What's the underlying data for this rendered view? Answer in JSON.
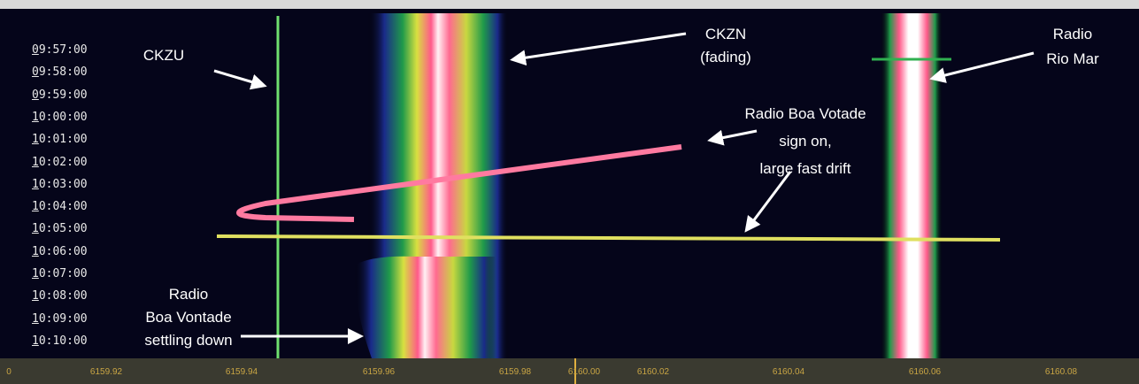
{
  "time_labels": [
    "09:57:00",
    "09:58:00",
    "09:59:00",
    "10:00:00",
    "10:01:00",
    "10:02:00",
    "10:03:00",
    "10:04:00",
    "10:05:00",
    "10:06:00",
    "10:07:00",
    "10:08:00",
    "10:09:00",
    "10:10:00"
  ],
  "freq_labels": [
    "0",
    "6159.92",
    "6159.94",
    "6159.96",
    "6159.98",
    "6160.00",
    "6160.02",
    "6160.04",
    "6160.06",
    "6160.08"
  ],
  "annotations": [
    {
      "lines": [
        "CKZU"
      ]
    },
    {
      "lines": [
        "CKZN",
        "(fading)"
      ]
    },
    {
      "lines": [
        "Radio",
        "Rio Mar"
      ]
    },
    {
      "lines": [
        "Radio Boa Votade",
        "sign on,",
        "large fast drift"
      ]
    },
    {
      "lines": [
        "Radio",
        "Boa Vontade",
        "settling down"
      ]
    }
  ]
}
